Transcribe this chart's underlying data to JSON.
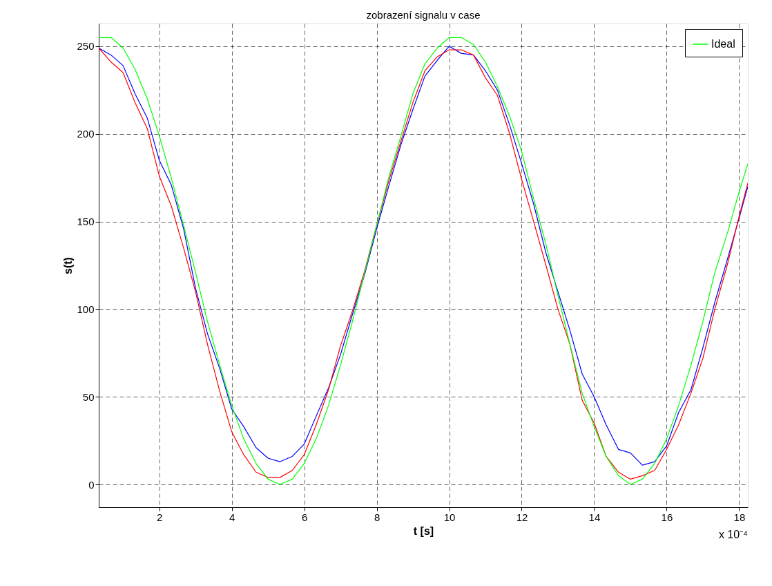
{
  "chart_data": {
    "type": "line",
    "title": "zobrazení signalu v case",
    "xlabel": "t [s]",
    "ylabel": "s(t)",
    "annotations": [
      "x 10⁻⁴"
    ],
    "x": [
      0.33,
      0.67,
      1,
      1.33,
      1.67,
      2,
      2.33,
      2.67,
      3,
      3.33,
      3.67,
      4,
      4.33,
      4.67,
      5,
      5.33,
      5.67,
      6,
      6.33,
      6.67,
      7,
      7.33,
      7.67,
      8,
      8.33,
      8.67,
      9,
      9.33,
      9.67,
      10,
      10.33,
      10.67,
      11,
      11.33,
      11.67,
      12,
      12.33,
      12.67,
      13,
      13.33,
      13.67,
      14,
      14.33,
      14.67,
      15,
      15.33,
      15.67,
      16,
      16.33,
      16.67,
      17,
      17.33,
      17.67,
      18,
      18.24
    ],
    "series": [
      {
        "color": "#0000ff",
        "values": [
          249,
          245,
          239,
          223,
          209,
          185,
          171,
          146,
          112,
          86,
          66,
          43,
          33,
          21,
          15,
          13,
          16,
          23,
          39,
          55,
          74,
          97,
          120,
          146,
          170,
          194,
          214,
          233,
          242,
          250,
          246,
          245,
          236,
          225,
          205,
          183,
          160,
          132,
          110,
          88,
          63,
          50,
          34,
          20,
          18,
          11,
          13,
          22,
          41,
          54,
          78,
          104,
          128,
          152,
          170
        ]
      },
      {
        "color": "#ff0000",
        "values": [
          249,
          241,
          235,
          218,
          203,
          176,
          159,
          135,
          110,
          80,
          53,
          30,
          17,
          7,
          4,
          4,
          8,
          17,
          34,
          54,
          79,
          99,
          122,
          148,
          173,
          196,
          218,
          236,
          244,
          248,
          248,
          245,
          232,
          222,
          200,
          174,
          150,
          125,
          100,
          80,
          48,
          35,
          16,
          7,
          3,
          5,
          8,
          20,
          34,
          52,
          72,
          100,
          125,
          153,
          172
        ]
      },
      {
        "name": "Ideal",
        "color": "#00ff00",
        "values": [
          255,
          255,
          249,
          237,
          220,
          199,
          175,
          148,
          121,
          93,
          68,
          45,
          26,
          12,
          3,
          0,
          3,
          12,
          26,
          45,
          68,
          93,
          121,
          148,
          175,
          199,
          223,
          240,
          249,
          255,
          255,
          251,
          241,
          227,
          210,
          190,
          163,
          137,
          108,
          80,
          52,
          33,
          16,
          5,
          0,
          3,
          12,
          26,
          45,
          68,
          93,
          121,
          143,
          167,
          183
        ]
      }
    ],
    "xlim": [
      0.33,
      18.24
    ],
    "xticks": [
      2,
      4,
      6,
      8,
      10,
      12,
      14,
      16,
      18
    ],
    "ylim": [
      -13,
      263
    ],
    "yticks": [
      0,
      50,
      100,
      150,
      200,
      250
    ],
    "grid": true,
    "legend": "top right",
    "line_style": "solid"
  }
}
